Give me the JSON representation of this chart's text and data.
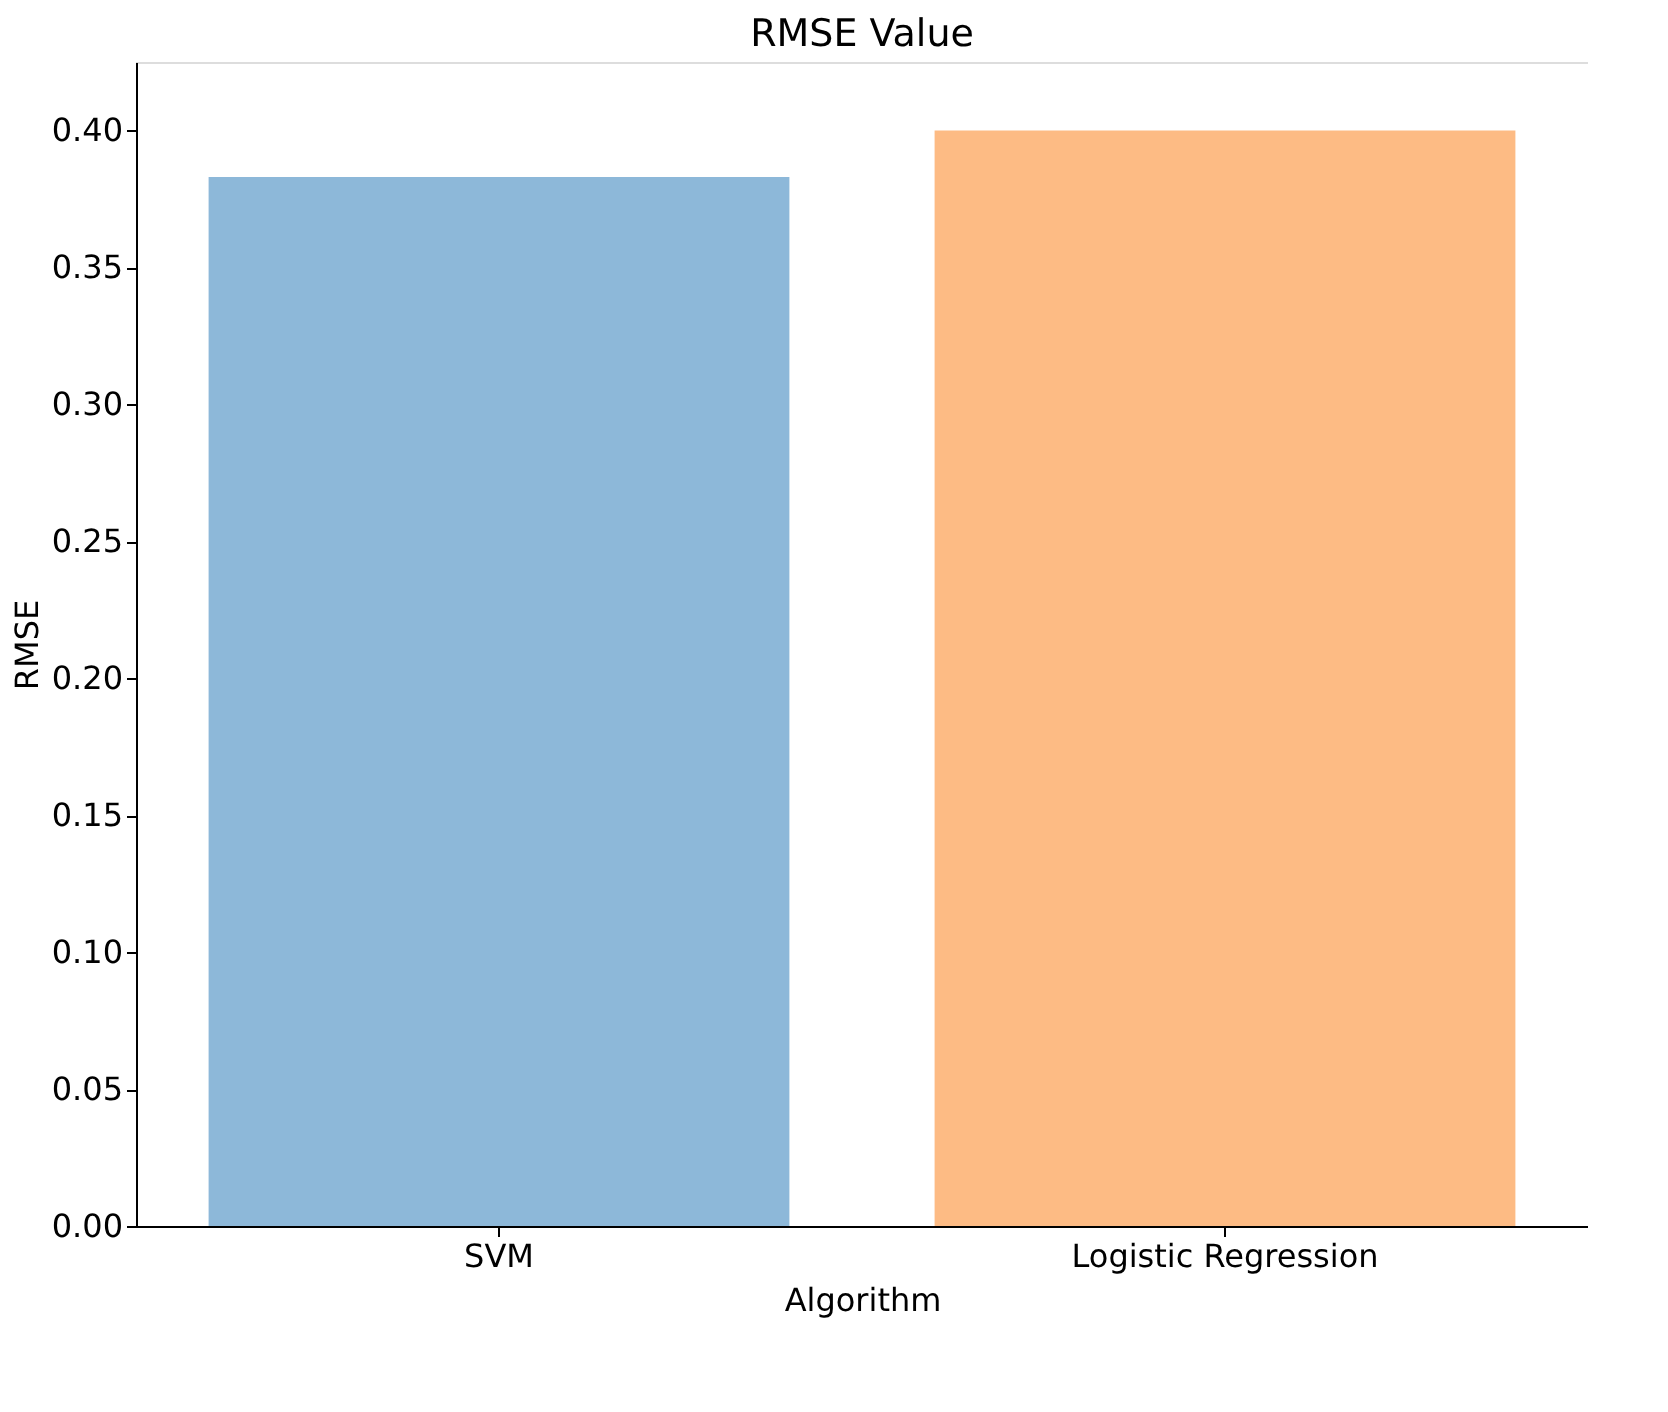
{
  "chart_data": {
    "type": "bar",
    "title": "RMSE Value",
    "xlabel": "Algorithm",
    "ylabel": "RMSE",
    "categories": [
      "SVM",
      "Logistic Regression"
    ],
    "values": [
      0.383,
      0.4
    ],
    "colors": [
      "#8db8d9",
      "#fdbb84"
    ],
    "ylim": [
      0,
      0.425
    ],
    "yticks": [
      {
        "value": 0,
        "label": "0.00"
      },
      0.05,
      {
        "value": 0.1,
        "label": "0.10"
      },
      0.15,
      {
        "value": 0.2,
        "label": "0.20"
      },
      0.25,
      {
        "value": 0.3,
        "label": "0.30"
      },
      0.35,
      {
        "value": 0.4,
        "label": "0.40"
      }
    ],
    "grid": false,
    "legend": false
  }
}
